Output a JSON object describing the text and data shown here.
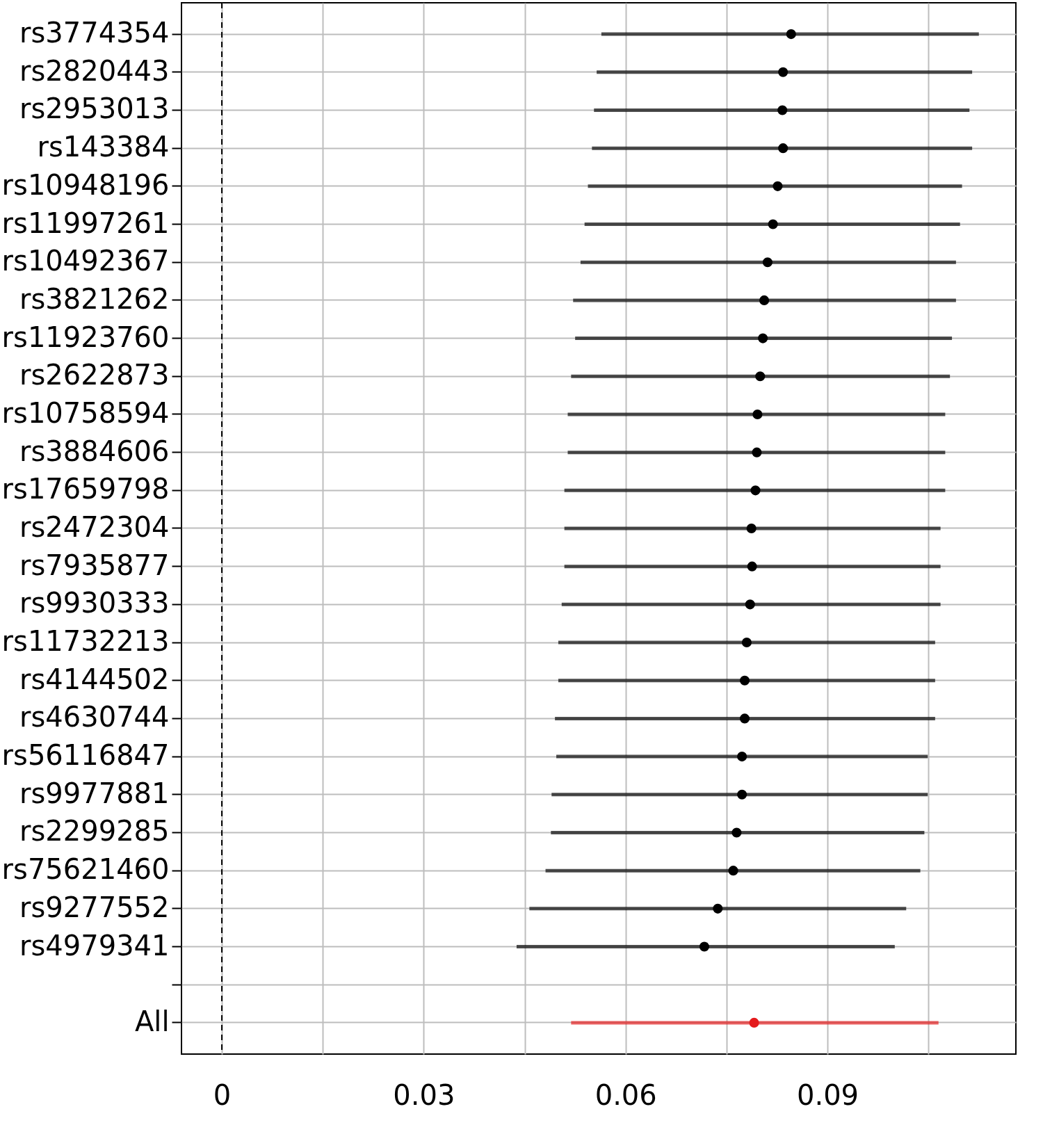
{
  "chart_data": {
    "type": "scatter",
    "orientation": "horizontal",
    "categories": [
      "rs3774354",
      "rs2820443",
      "rs2953013",
      "rs143384",
      "rs10948196",
      "rs11997261",
      "rs10492367",
      "rs3821262",
      "rs11923760",
      "rs2622873",
      "rs10758594",
      "rs3884606",
      "rs17659798",
      "rs2472304",
      "rs7935877",
      "rs9930333",
      "rs11732213",
      "rs4144502",
      "rs4630744",
      "rs56116847",
      "rs9977881",
      "rs2299285",
      "rs75621460",
      "rs9277552",
      "rs4979341",
      null,
      "All"
    ],
    "series": [
      {
        "color": "#000000",
        "values": [
          0.0846,
          0.0834,
          0.0833,
          0.0834,
          0.0826,
          0.0819,
          0.0811,
          0.0806,
          0.0804,
          0.08,
          0.0796,
          0.0795,
          0.0793,
          0.0787,
          0.0788,
          0.0785,
          0.078,
          0.0777,
          0.0777,
          0.0773,
          0.0773,
          0.0765,
          0.076,
          0.0737,
          0.0717,
          null,
          null
        ],
        "errors": [
          [
            0.0564,
            0.1125
          ],
          [
            0.0557,
            0.1115
          ],
          [
            0.0553,
            0.1111
          ],
          [
            0.055,
            0.1115
          ],
          [
            0.0544,
            0.11
          ],
          [
            0.0539,
            0.1097
          ],
          [
            0.0533,
            0.1091
          ],
          [
            0.0522,
            0.1091
          ],
          [
            0.0525,
            0.1085
          ],
          [
            0.0519,
            0.1082
          ],
          [
            0.0514,
            0.1075
          ],
          [
            0.0514,
            0.1075
          ],
          [
            0.0509,
            0.1075
          ],
          [
            0.0509,
            0.1068
          ],
          [
            0.0509,
            0.1068
          ],
          [
            0.0505,
            0.1068
          ],
          [
            0.05,
            0.106
          ],
          [
            0.05,
            0.106
          ],
          [
            0.0495,
            0.106
          ],
          [
            0.0497,
            0.1049
          ],
          [
            0.049,
            0.1049
          ],
          [
            0.0489,
            0.1044
          ],
          [
            0.0481,
            0.1038
          ],
          [
            0.0457,
            0.1017
          ],
          [
            0.0438,
            0.1
          ],
          null,
          null
        ]
      },
      {
        "color": "#e41a1c",
        "values": [
          null,
          null,
          null,
          null,
          null,
          null,
          null,
          null,
          null,
          null,
          null,
          null,
          null,
          null,
          null,
          null,
          null,
          null,
          null,
          null,
          null,
          null,
          null,
          null,
          null,
          null,
          0.0791
        ],
        "errors": [
          null,
          null,
          null,
          null,
          null,
          null,
          null,
          null,
          null,
          null,
          null,
          null,
          null,
          null,
          null,
          null,
          null,
          null,
          null,
          null,
          null,
          null,
          null,
          null,
          null,
          null,
          [
            0.0519,
            0.1065
          ]
        ]
      }
    ],
    "xlim": [
      -0.006,
      0.118
    ],
    "xticks": [
      0,
      {
        "value": 0.015,
        "label": null
      },
      0.03,
      {
        "value": 0.045,
        "label": null
      },
      0.06,
      {
        "value": 0.075,
        "label": null
      },
      0.09,
      {
        "value": 0.105,
        "label": null
      }
    ],
    "grid": true,
    "marker": "circle",
    "ref_lines": [
      {
        "axis": "x",
        "value": 0,
        "color": "#000000",
        "line_style": "dashed"
      }
    ]
  }
}
